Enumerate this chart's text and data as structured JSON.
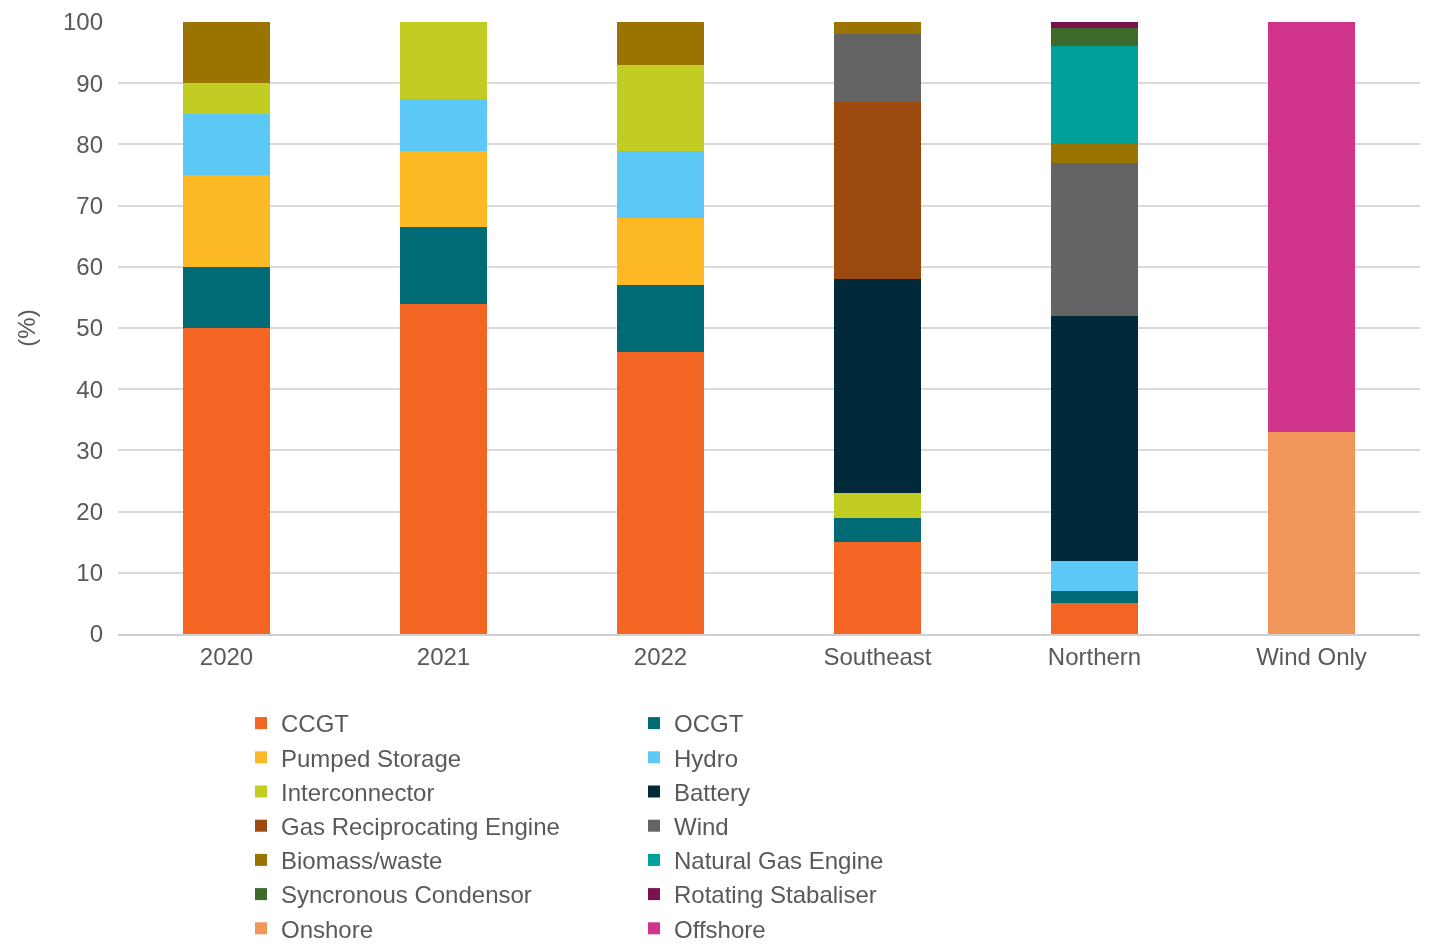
{
  "chart_data": {
    "type": "bar",
    "stacked": true,
    "ylabel": "(%)",
    "categories": [
      "2020",
      "2021",
      "2022",
      "Southeast",
      "Northern",
      "Wind Only"
    ],
    "ylim": [
      0,
      100
    ],
    "yticks": [
      0,
      10,
      20,
      30,
      40,
      50,
      60,
      70,
      80,
      90,
      100
    ],
    "grid": "y",
    "legend": "bottom",
    "series": [
      {
        "name": "CCGT",
        "color": "#f26522",
        "values": [
          50,
          54,
          46,
          15,
          5,
          null
        ]
      },
      {
        "name": "OCGT",
        "color": "#006b75",
        "values": [
          10,
          12.5,
          11,
          4,
          2,
          null
        ]
      },
      {
        "name": "Pumped Storage",
        "color": "#fdb924",
        "values": [
          15,
          12.5,
          11,
          null,
          null,
          null
        ]
      },
      {
        "name": "Hydro",
        "color": "#5bc8f5",
        "values": [
          10,
          8.5,
          11,
          null,
          5,
          null
        ]
      },
      {
        "name": "Interconnector",
        "color": "#c1cd23",
        "values": [
          5,
          12.5,
          14,
          4,
          null,
          null
        ]
      },
      {
        "name": "Battery",
        "color": "#002a3a",
        "values": [
          null,
          null,
          null,
          35,
          40,
          null
        ]
      },
      {
        "name": "Gas Reciprocating Engine",
        "color": "#9c4a0f",
        "values": [
          null,
          null,
          null,
          29,
          null,
          null
        ]
      },
      {
        "name": "Wind",
        "color": "#646464",
        "values": [
          null,
          null,
          null,
          11,
          25,
          null
        ]
      },
      {
        "name": "Biomass/waste",
        "color": "#9a7300",
        "values": [
          10,
          null,
          7,
          2,
          3,
          null
        ]
      },
      {
        "name": "Natural Gas Engine",
        "color": "#00a19a",
        "values": [
          null,
          null,
          null,
          null,
          16,
          null
        ]
      },
      {
        "name": "Syncronous Condensor",
        "color": "#3d6b2b",
        "values": [
          null,
          null,
          null,
          null,
          3,
          null
        ]
      },
      {
        "name": "Rotating Stabaliser",
        "color": "#7a1250",
        "values": [
          null,
          null,
          null,
          null,
          1,
          null
        ]
      },
      {
        "name": "Onshore",
        "color": "#f0965a",
        "values": [
          null,
          null,
          null,
          null,
          null,
          33
        ]
      },
      {
        "name": "Offshore",
        "color": "#cf338a",
        "values": [
          null,
          null,
          null,
          null,
          null,
          67
        ]
      }
    ]
  }
}
